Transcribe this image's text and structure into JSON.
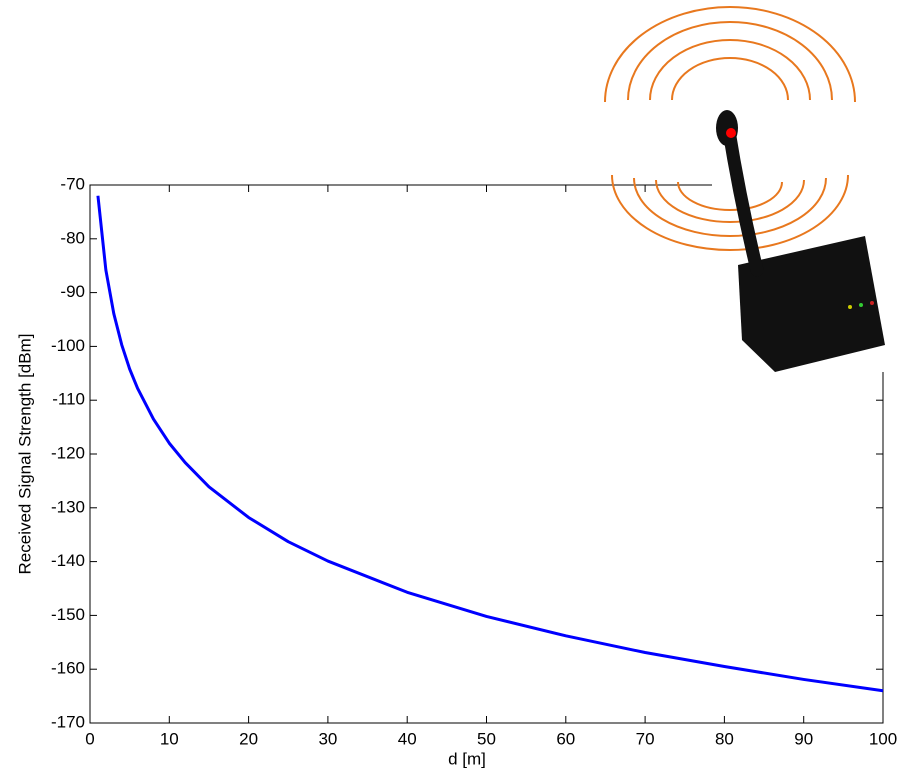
{
  "chart_data": {
    "type": "line",
    "xlabel": "d [m]",
    "ylabel": "Received Signal Strength [dBm]",
    "x": [
      1,
      2,
      3,
      4,
      5,
      6,
      8,
      10,
      12,
      15,
      20,
      25,
      30,
      40,
      50,
      60,
      70,
      80,
      90,
      100
    ],
    "series": [
      {
        "color": "#0000ff",
        "values": [
          -72,
          -85.8,
          -93.9,
          -99.7,
          -104.2,
          -107.8,
          -113.5,
          -118,
          -121.6,
          -126.1,
          -131.8,
          -136.3,
          -139.9,
          -145.7,
          -150.2,
          -153.8,
          -156.9,
          -159.5,
          -161.9,
          -164
        ]
      }
    ],
    "xlim": [
      0,
      100
    ],
    "xticks": [
      0,
      10,
      20,
      30,
      40,
      50,
      60,
      70,
      80,
      90,
      100
    ],
    "ylim": [
      -170,
      -70
    ],
    "yticks": [
      -170,
      -160,
      -150,
      -140,
      -130,
      -120,
      -110,
      -100,
      -90,
      -80,
      -70
    ]
  }
}
